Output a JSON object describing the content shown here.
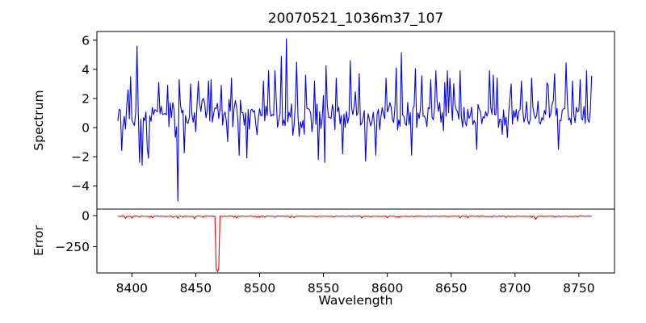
{
  "figure": {
    "title": "20070521_1036m37_107",
    "background": "#ffffff",
    "axis_color": "#000000"
  },
  "chart_data": [
    {
      "type": "line",
      "panel": "spectrum",
      "title": "20070521_1036m37_107",
      "ylabel": "Spectrum",
      "line_color": "#0000ff",
      "x_start": 8389,
      "x_end": 8760,
      "x_step": 1,
      "xlim": [
        8372.6,
        8777.9
      ],
      "ylim": [
        -5.6,
        6.6
      ],
      "yticks": [
        -4,
        -2,
        0,
        2,
        4,
        6
      ],
      "ytick_labels": [
        "−4",
        "−2",
        "0",
        "2",
        "4",
        "6"
      ],
      "grid": false,
      "legend": false,
      "baseline_mean": 0.85,
      "noise_sd": 0.58,
      "extra_spike_prob": 0.045,
      "noise_clip": [
        -2.7,
        3.9
      ],
      "seed": 20070521,
      "peaks": [
        [
          8397,
          2.6
        ],
        [
          8404,
          5.6
        ],
        [
          8406,
          -2.4
        ],
        [
          8408,
          -2.6
        ],
        [
          8412,
          -1.4
        ],
        [
          8421,
          3.1
        ],
        [
          8428,
          2.9
        ],
        [
          8436,
          -5.05
        ],
        [
          8437,
          3.3
        ],
        [
          8446,
          3.0
        ],
        [
          8452,
          3.2
        ],
        [
          8462,
          3.3
        ],
        [
          8470,
          2.9
        ],
        [
          8478,
          3.4
        ],
        [
          8484,
          -1.9
        ],
        [
          8490,
          -2.1
        ],
        [
          8503,
          3.2
        ],
        [
          8512,
          3.9
        ],
        [
          8517,
          4.9
        ],
        [
          8521,
          6.1
        ],
        [
          8529,
          4.5
        ],
        [
          8536,
          3.6
        ],
        [
          8543,
          3.2
        ],
        [
          8546,
          -2.2
        ],
        [
          8551,
          -2.4
        ],
        [
          8552,
          4.25
        ],
        [
          8560,
          3.4
        ],
        [
          8565,
          -1.8
        ],
        [
          8571,
          4.6
        ],
        [
          8578,
          3.7
        ],
        [
          8583,
          -2.3
        ],
        [
          8591,
          -1.9
        ],
        [
          8599,
          3.4
        ],
        [
          8607,
          4.1
        ],
        [
          8611,
          5.15
        ],
        [
          8619,
          -1.9
        ],
        [
          8622,
          4.05
        ],
        [
          8634,
          3.3
        ],
        [
          8645,
          3.1
        ],
        [
          8657,
          3.9
        ],
        [
          8670,
          -1.5
        ],
        [
          8683,
          3.6
        ],
        [
          8686,
          3.4
        ],
        [
          8697,
          3.0
        ],
        [
          8705,
          3.2
        ],
        [
          8713,
          3.4
        ],
        [
          8726,
          2.9
        ],
        [
          8731,
          3.7
        ],
        [
          8734,
          -1.5
        ],
        [
          8740,
          4.45
        ],
        [
          8745,
          3.2
        ],
        [
          8751,
          3.3
        ]
      ]
    },
    {
      "type": "line",
      "panel": "error",
      "ylabel": "Error",
      "xlabel": "Wavelength",
      "line_color": "#ff0000",
      "x_start": 8389,
      "x_end": 8760,
      "x_step": 1,
      "xlim": [
        8372.6,
        8777.9
      ],
      "ylim": [
        -462,
        52
      ],
      "yticks": [
        0,
        -250
      ],
      "ytick_labels": [
        "0",
        "−250"
      ],
      "xticks": [
        8400,
        8450,
        8500,
        8550,
        8600,
        8650,
        8700,
        8750
      ],
      "xtick_labels": [
        "8400",
        "8450",
        "8500",
        "8550",
        "8600",
        "8650",
        "8700",
        "8750"
      ],
      "grid": false,
      "legend": false,
      "baseline_mean": -5,
      "noise_sd": 1.3,
      "extra_spike_prob": 0.05,
      "noise_clip": [
        -38,
        -2
      ],
      "seed": 1036,
      "peaks": [
        [
          8400,
          -20
        ],
        [
          8414,
          -14
        ],
        [
          8436,
          -22
        ],
        [
          8449,
          -24
        ],
        [
          8456,
          -13
        ],
        [
          8466,
          -425
        ],
        [
          8467,
          -453
        ],
        [
          8468,
          -430
        ],
        [
          8482,
          -20
        ],
        [
          8500,
          -14
        ],
        [
          8527,
          -16
        ],
        [
          8545,
          -10
        ],
        [
          8558,
          -11
        ],
        [
          8572,
          -9
        ],
        [
          8587,
          -12
        ],
        [
          8607,
          -12
        ],
        [
          8621,
          -10
        ],
        [
          8640,
          -8
        ],
        [
          8657,
          -18
        ],
        [
          8672,
          -9
        ],
        [
          8682,
          -10
        ],
        [
          8700,
          -8
        ],
        [
          8716,
          -30
        ],
        [
          8731,
          -14
        ],
        [
          8742,
          -9
        ],
        [
          8749,
          -10
        ]
      ]
    }
  ]
}
